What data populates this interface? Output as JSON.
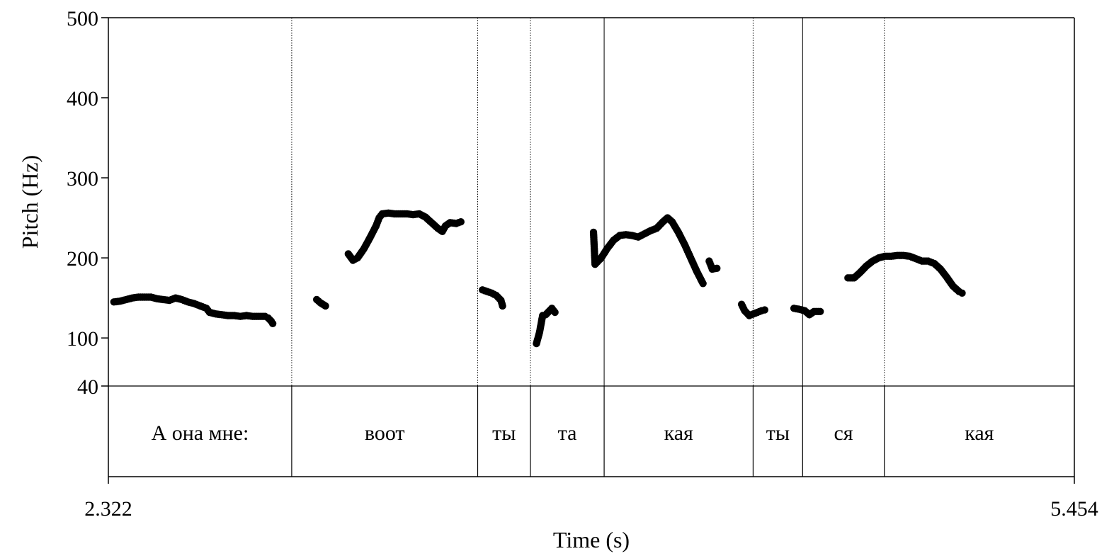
{
  "chart_data": {
    "type": "scatter",
    "xlabel": "Time (s)",
    "ylabel": "Pitch (Hz)",
    "xlim": [
      2.322,
      5.454
    ],
    "ylim": [
      40,
      500
    ],
    "x_tick_labels": [
      "2.322",
      "5.454"
    ],
    "y_ticks": [
      40,
      100,
      200,
      300,
      400,
      500
    ],
    "grid": false,
    "point_color": "#000000",
    "pitch_contours": [
      {
        "points": [
          [
            2.34,
            145
          ],
          [
            2.36,
            146
          ],
          [
            2.38,
            148
          ],
          [
            2.4,
            150
          ],
          [
            2.42,
            151
          ],
          [
            2.44,
            151
          ],
          [
            2.46,
            151
          ],
          [
            2.48,
            149
          ],
          [
            2.5,
            148
          ],
          [
            2.52,
            147
          ],
          [
            2.54,
            150
          ],
          [
            2.56,
            148
          ],
          [
            2.58,
            145
          ],
          [
            2.6,
            143
          ],
          [
            2.62,
            140
          ],
          [
            2.64,
            137
          ],
          [
            2.65,
            132
          ],
          [
            2.67,
            130
          ],
          [
            2.69,
            129
          ],
          [
            2.71,
            128
          ],
          [
            2.73,
            128
          ],
          [
            2.75,
            127
          ],
          [
            2.77,
            128
          ],
          [
            2.79,
            127
          ],
          [
            2.81,
            127
          ],
          [
            2.83,
            127
          ],
          [
            2.84,
            125
          ],
          [
            2.85,
            121
          ],
          [
            2.855,
            118
          ]
        ]
      },
      {
        "points": [
          [
            2.9975,
            148
          ],
          [
            3.0095,
            144
          ],
          [
            3.026,
            140
          ]
        ]
      },
      {
        "points": [
          [
            3.1,
            205
          ],
          [
            3.115,
            197
          ],
          [
            3.13,
            200
          ],
          [
            3.15,
            211
          ],
          [
            3.17,
            225
          ],
          [
            3.19,
            240
          ],
          [
            3.2,
            250
          ],
          [
            3.21,
            255
          ],
          [
            3.23,
            256
          ],
          [
            3.25,
            255
          ],
          [
            3.27,
            255
          ],
          [
            3.29,
            255
          ],
          [
            3.31,
            254
          ],
          [
            3.33,
            255
          ],
          [
            3.35,
            251
          ],
          [
            3.37,
            244
          ],
          [
            3.39,
            237
          ],
          [
            3.405,
            233
          ],
          [
            3.415,
            240
          ],
          [
            3.43,
            244
          ],
          [
            3.45,
            243
          ],
          [
            3.465,
            245
          ]
        ]
      },
      {
        "points": [
          [
            3.535,
            160
          ],
          [
            3.55,
            158
          ],
          [
            3.565,
            156
          ],
          [
            3.58,
            153
          ],
          [
            3.595,
            147
          ],
          [
            3.6,
            140
          ]
        ]
      },
      {
        "points": [
          [
            3.71,
            93
          ],
          [
            3.72,
            107
          ],
          [
            3.73,
            128
          ],
          [
            3.74,
            129
          ],
          [
            3.76,
            137
          ],
          [
            3.77,
            132
          ]
        ]
      },
      {
        "points": [
          [
            3.895,
            232
          ],
          [
            3.9,
            192
          ],
          [
            3.92,
            200
          ],
          [
            3.94,
            212
          ],
          [
            3.96,
            222
          ],
          [
            3.98,
            228
          ],
          [
            4.0,
            229
          ],
          [
            4.02,
            228
          ],
          [
            4.04,
            226
          ],
          [
            4.06,
            230
          ],
          [
            4.08,
            234
          ],
          [
            4.1,
            237
          ],
          [
            4.12,
            245
          ],
          [
            4.135,
            250
          ],
          [
            4.15,
            245
          ],
          [
            4.17,
            232
          ],
          [
            4.19,
            217
          ],
          [
            4.21,
            200
          ],
          [
            4.23,
            183
          ],
          [
            4.25,
            168
          ]
        ]
      },
      {
        "points": [
          [
            4.27,
            196
          ],
          [
            4.28,
            186
          ],
          [
            4.295,
            187
          ]
        ]
      },
      {
        "points": [
          [
            4.375,
            142
          ],
          [
            4.385,
            134
          ],
          [
            4.4,
            128
          ],
          [
            4.42,
            131
          ],
          [
            4.44,
            134
          ],
          [
            4.45,
            135
          ]
        ]
      },
      {
        "points": [
          [
            4.545,
            137
          ],
          [
            4.56,
            136
          ],
          [
            4.58,
            134
          ],
          [
            4.595,
            129
          ],
          [
            4.61,
            133
          ],
          [
            4.63,
            133
          ]
        ]
      },
      {
        "points": [
          [
            4.72,
            175
          ],
          [
            4.74,
            175
          ],
          [
            4.76,
            182
          ],
          [
            4.78,
            190
          ],
          [
            4.8,
            196
          ],
          [
            4.82,
            200
          ],
          [
            4.84,
            202
          ],
          [
            4.86,
            202
          ],
          [
            4.88,
            203
          ],
          [
            4.9,
            203
          ],
          [
            4.92,
            202
          ],
          [
            4.94,
            199
          ],
          [
            4.96,
            196
          ],
          [
            4.98,
            196
          ],
          [
            5.0,
            193
          ],
          [
            5.02,
            186
          ],
          [
            5.04,
            176
          ],
          [
            5.06,
            165
          ],
          [
            5.08,
            158
          ],
          [
            5.09,
            156
          ]
        ]
      }
    ],
    "segments": [
      {
        "label": "А она мне:",
        "start": 2.322,
        "end": 2.9165,
        "boundary_style": "dotted"
      },
      {
        "label": "воот",
        "start": 2.9165,
        "end": 3.5195,
        "boundary_style": "dotted"
      },
      {
        "label": "ты",
        "start": 3.5195,
        "end": 3.6905,
        "boundary_style": "dotted"
      },
      {
        "label": "та",
        "start": 3.6905,
        "end": 3.9295,
        "boundary_style": "solid"
      },
      {
        "label": "кая",
        "start": 3.9295,
        "end": 4.4125,
        "boundary_style": "dotted"
      },
      {
        "label": "ты",
        "start": 4.4125,
        "end": 4.573,
        "boundary_style": "solid"
      },
      {
        "label": "ся",
        "start": 4.573,
        "end": 4.838,
        "boundary_style": "dotted"
      },
      {
        "label": "кая",
        "start": 4.838,
        "end": 5.454,
        "boundary_style": "solid"
      }
    ]
  }
}
